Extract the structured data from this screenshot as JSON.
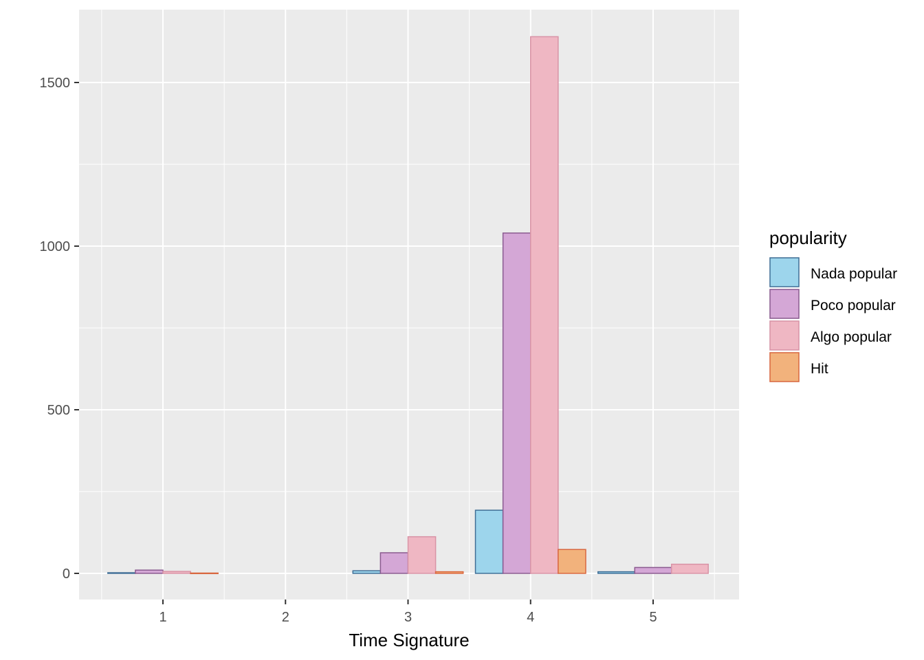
{
  "chart_data": {
    "type": "bar",
    "title": "",
    "xlabel": "Time Signature",
    "ylabel": "",
    "categories": [
      "1",
      "2",
      "3",
      "4",
      "5"
    ],
    "yticks": [
      0,
      500,
      1000,
      1500
    ],
    "ylim": [
      -80,
      1720
    ],
    "grid": true,
    "legend_title": "popularity",
    "legend_position": "right",
    "series": [
      {
        "name": "Nada popular",
        "values": [
          2,
          0,
          8,
          193,
          5
        ],
        "fill": "#9dd5ec",
        "stroke": "#3f6e96"
      },
      {
        "name": "Poco popular",
        "values": [
          10,
          0,
          63,
          1040,
          18
        ],
        "fill": "#d4a7d6",
        "stroke": "#8a5a8f"
      },
      {
        "name": "Algo popular",
        "values": [
          6,
          0,
          112,
          1640,
          28
        ],
        "fill": "#efb7c3",
        "stroke": "#d893a6"
      },
      {
        "name": "Hit",
        "values": [
          1,
          0,
          5,
          73,
          0
        ],
        "fill": "#f2b27c",
        "stroke": "#d9673f"
      }
    ],
    "panel_background": "#ebebeb",
    "grid_color": "#ffffff"
  }
}
